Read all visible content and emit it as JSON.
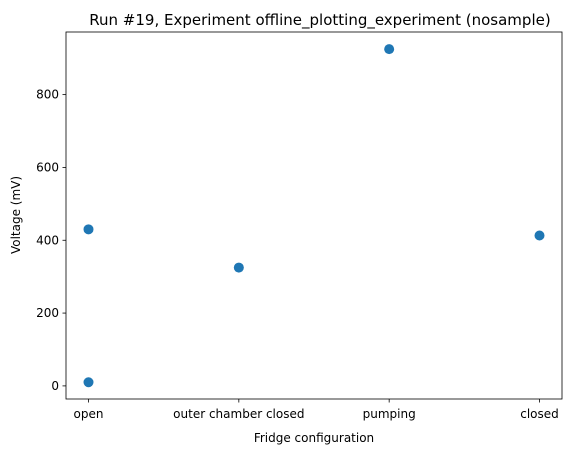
{
  "chart_data": {
    "type": "scatter",
    "title": "Run #19, Experiment offline_plotting_experiment (nosample)",
    "xlabel": "Fridge configuration",
    "ylabel": "Voltage (mV)",
    "categories": [
      "open",
      "outer chamber closed",
      "pumping",
      "closed"
    ],
    "points": [
      {
        "x": "open",
        "y": 10
      },
      {
        "x": "open",
        "y": 430
      },
      {
        "x": "outer chamber closed",
        "y": 325
      },
      {
        "x": "pumping",
        "y": 925
      },
      {
        "x": "closed",
        "y": 413
      }
    ],
    "ylim": [
      -36,
      972
    ],
    "yticks": [
      0,
      200,
      400,
      600,
      800
    ],
    "grid": false,
    "legend": "none",
    "marker_color": "#1f77b4"
  }
}
